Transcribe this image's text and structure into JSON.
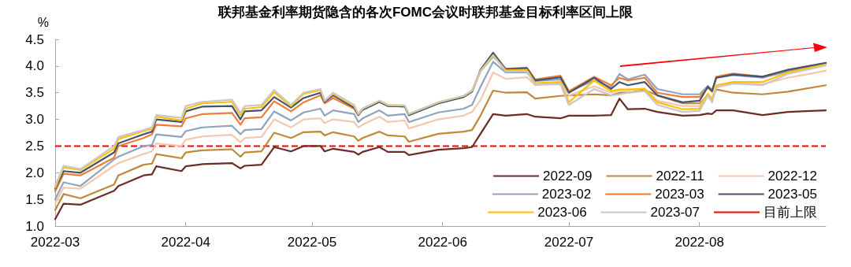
{
  "chart_data": {
    "type": "line",
    "title": "联邦基金利率期货隐含的各次FOMC会议时联邦基金目标利率区间上限",
    "ylabel": "%",
    "x": [
      "2022-03-01",
      "2022-03-03",
      "2022-03-07",
      "2022-03-15",
      "2022-03-16",
      "2022-03-22",
      "2022-03-24",
      "2022-03-25",
      "2022-03-31",
      "2022-04-01",
      "2022-04-05",
      "2022-04-12",
      "2022-04-14",
      "2022-04-15",
      "2022-04-19",
      "2022-04-22",
      "2022-04-26",
      "2022-04-29",
      "2022-05-03",
      "2022-05-04",
      "2022-05-06",
      "2022-05-11",
      "2022-05-12",
      "2022-05-13",
      "2022-05-17",
      "2022-05-19",
      "2022-05-23",
      "2022-05-24",
      "2022-05-31",
      "2022-06-06",
      "2022-06-08",
      "2022-06-10",
      "2022-06-13",
      "2022-06-16",
      "2022-06-21",
      "2022-06-23",
      "2022-06-29",
      "2022-07-01",
      "2022-07-07",
      "2022-07-11",
      "2022-07-13",
      "2022-07-15",
      "2022-07-19",
      "2022-07-22",
      "2022-07-28",
      "2022-08-01",
      "2022-08-03",
      "2022-08-04",
      "2022-08-05",
      "2022-08-09",
      "2022-08-16",
      "2022-08-22",
      "2022-08-31"
    ],
    "series": [
      {
        "name": "2022-09",
        "color": "#6b2c26",
        "values": [
          1.13,
          1.42,
          1.4,
          1.66,
          1.75,
          1.95,
          1.97,
          2.12,
          2.03,
          2.12,
          2.16,
          2.18,
          2.08,
          2.13,
          2.15,
          2.48,
          2.4,
          2.5,
          2.5,
          2.4,
          2.45,
          2.39,
          2.34,
          2.39,
          2.48,
          2.39,
          2.39,
          2.33,
          2.43,
          2.46,
          2.48,
          2.73,
          3.1,
          3.07,
          3.1,
          3.05,
          3.02,
          3.07,
          3.07,
          3.08,
          3.39,
          3.19,
          3.2,
          3.14,
          3.07,
          3.08,
          3.11,
          3.1,
          3.17,
          3.17,
          3.08,
          3.14,
          3.17
        ]
      },
      {
        "name": "2022-11",
        "color": "#c0893a",
        "values": [
          1.3,
          1.6,
          1.52,
          1.78,
          1.95,
          2.15,
          2.17,
          2.35,
          2.27,
          2.38,
          2.42,
          2.44,
          2.3,
          2.38,
          2.4,
          2.75,
          2.65,
          2.76,
          2.77,
          2.7,
          2.76,
          2.68,
          2.6,
          2.65,
          2.77,
          2.7,
          2.68,
          2.58,
          2.73,
          2.77,
          2.8,
          3.07,
          3.54,
          3.5,
          3.51,
          3.39,
          3.44,
          3.45,
          3.47,
          3.45,
          3.5,
          3.5,
          3.55,
          3.45,
          3.3,
          3.3,
          3.45,
          3.4,
          3.56,
          3.5,
          3.47,
          3.52,
          3.64
        ]
      },
      {
        "name": "2022-12",
        "color": "#f6c7ae",
        "values": [
          1.42,
          1.72,
          1.7,
          2.13,
          2.18,
          2.35,
          2.4,
          2.55,
          2.5,
          2.62,
          2.68,
          2.71,
          2.57,
          2.65,
          2.67,
          3.0,
          2.85,
          3.0,
          3.02,
          2.93,
          3.0,
          2.95,
          2.85,
          2.9,
          3.05,
          2.95,
          2.98,
          2.83,
          3.0,
          3.07,
          3.14,
          3.36,
          3.88,
          3.76,
          3.79,
          3.64,
          3.69,
          3.45,
          3.62,
          3.5,
          3.55,
          3.55,
          3.58,
          3.35,
          3.25,
          3.25,
          3.47,
          3.4,
          3.62,
          3.68,
          3.66,
          3.78,
          3.91
        ]
      },
      {
        "name": "2023-02",
        "color": "#8fa3bf",
        "values": [
          1.5,
          1.82,
          1.75,
          2.25,
          2.3,
          2.5,
          2.52,
          2.72,
          2.67,
          2.78,
          2.85,
          2.88,
          2.72,
          2.8,
          2.82,
          3.15,
          2.98,
          3.13,
          3.2,
          3.07,
          3.17,
          3.1,
          2.95,
          3.02,
          3.17,
          3.07,
          3.1,
          2.95,
          3.13,
          3.2,
          3.27,
          3.61,
          4.08,
          3.88,
          3.88,
          3.72,
          3.75,
          3.52,
          3.73,
          3.6,
          3.85,
          3.75,
          3.84,
          3.57,
          3.47,
          3.47,
          3.63,
          3.55,
          3.78,
          3.83,
          3.78,
          3.9,
          4.04
        ]
      },
      {
        "name": "2023-03",
        "color": "#ee7d3a",
        "values": [
          1.65,
          1.98,
          1.95,
          2.28,
          2.5,
          2.65,
          2.72,
          2.9,
          2.87,
          3.02,
          3.1,
          3.12,
          2.9,
          3.02,
          3.04,
          3.34,
          3.15,
          3.32,
          3.45,
          3.3,
          3.4,
          3.2,
          3.08,
          3.18,
          3.33,
          3.25,
          3.25,
          3.08,
          3.3,
          3.42,
          3.52,
          3.9,
          4.18,
          3.95,
          3.97,
          3.75,
          3.82,
          3.53,
          3.8,
          3.64,
          3.78,
          3.73,
          3.78,
          3.5,
          3.42,
          3.42,
          3.6,
          3.52,
          3.8,
          3.86,
          3.8,
          3.92,
          4.05
        ]
      },
      {
        "name": "2023-05",
        "color": "#44546a",
        "values": [
          1.7,
          2.03,
          2.0,
          2.38,
          2.55,
          2.72,
          2.77,
          3.0,
          2.95,
          3.15,
          3.24,
          3.25,
          3.0,
          3.15,
          3.17,
          3.42,
          3.22,
          3.4,
          3.5,
          3.33,
          3.45,
          3.22,
          3.08,
          3.18,
          3.33,
          3.25,
          3.24,
          3.08,
          3.3,
          3.42,
          3.52,
          3.93,
          4.25,
          3.94,
          3.96,
          3.73,
          3.79,
          3.5,
          3.78,
          3.57,
          3.7,
          3.64,
          3.7,
          3.45,
          3.32,
          3.35,
          3.61,
          3.53,
          3.78,
          3.84,
          3.8,
          3.93,
          4.06
        ]
      },
      {
        "name": "2023-06",
        "color": "#ffc000",
        "values": [
          1.72,
          2.1,
          2.05,
          2.45,
          2.63,
          2.78,
          2.82,
          3.05,
          2.98,
          3.2,
          3.3,
          3.33,
          3.08,
          3.2,
          3.23,
          3.51,
          3.25,
          3.48,
          3.55,
          3.35,
          3.48,
          3.25,
          3.1,
          3.2,
          3.35,
          3.27,
          3.26,
          3.1,
          3.32,
          3.44,
          3.54,
          3.91,
          4.2,
          3.92,
          3.93,
          3.68,
          3.7,
          3.32,
          3.73,
          3.53,
          3.56,
          3.56,
          3.57,
          3.32,
          3.19,
          3.2,
          3.48,
          3.35,
          3.64,
          3.7,
          3.7,
          3.88,
          4.03
        ]
      },
      {
        "name": "2023-07",
        "color": "#c8c8c8",
        "values": [
          1.75,
          2.13,
          2.07,
          2.5,
          2.67,
          2.8,
          2.85,
          3.08,
          3.03,
          3.25,
          3.33,
          3.37,
          3.12,
          3.25,
          3.27,
          3.55,
          3.27,
          3.5,
          3.57,
          3.35,
          3.5,
          3.27,
          3.1,
          3.2,
          3.35,
          3.27,
          3.26,
          3.1,
          3.32,
          3.44,
          3.54,
          3.9,
          4.2,
          3.9,
          3.9,
          3.65,
          3.66,
          3.27,
          3.57,
          3.45,
          3.47,
          3.5,
          3.53,
          3.27,
          3.14,
          3.16,
          3.44,
          3.32,
          3.6,
          3.67,
          3.64,
          3.85,
          4.01
        ]
      }
    ],
    "ref_lines": [
      {
        "axis": "y",
        "value": 2.5,
        "label": "目前上限",
        "color": "#ff0000",
        "line_style": "dashed"
      }
    ],
    "xlim": [
      "2022-03-01",
      "2022-08-31"
    ],
    "xticks": [
      {
        "value": "2022-03-01",
        "label": "2022-03"
      },
      {
        "value": "2022-04-01",
        "label": "2022-04"
      },
      {
        "value": "2022-05-01",
        "label": "2022-05"
      },
      {
        "value": "2022-06-01",
        "label": "2022-06"
      },
      {
        "value": "2022-07-01",
        "label": "2022-07"
      },
      {
        "value": "2022-08-01",
        "label": "2022-08"
      }
    ],
    "ylim": [
      1,
      4.5
    ],
    "yticks": [
      {
        "value": 1,
        "label": "1.0"
      },
      {
        "value": 1.5,
        "label": "1.5"
      },
      {
        "value": 2,
        "label": "2.0"
      },
      {
        "value": 2.5,
        "label": "2.5"
      },
      {
        "value": 3,
        "label": "3.0"
      },
      {
        "value": 3.5,
        "label": "3.5"
      },
      {
        "value": 4,
        "label": "4.0"
      },
      {
        "value": 4.5,
        "label": "4.5"
      }
    ],
    "grid": false,
    "legend": "bottom right",
    "marker": "none",
    "line_style": "solid"
  }
}
